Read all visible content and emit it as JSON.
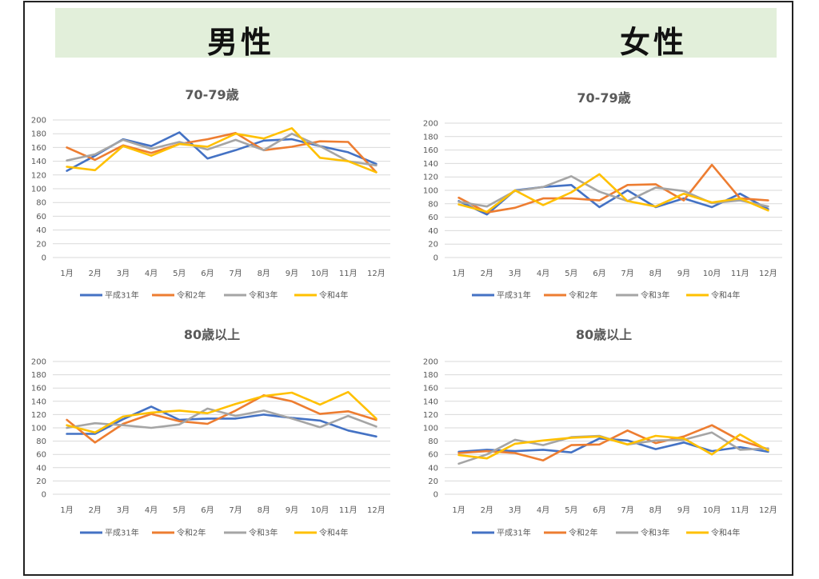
{
  "banner": {
    "left": "男性",
    "right": "女性"
  },
  "legend": [
    "平成31年",
    "令和2年",
    "令和3年",
    "令和4年"
  ],
  "colors": [
    "#4472c4",
    "#ed7d31",
    "#a5a5a5",
    "#ffc000"
  ],
  "chart_data": [
    {
      "type": "line",
      "title": "70-79歳",
      "group": "男性",
      "categories": [
        "1月",
        "2月",
        "3月",
        "4月",
        "5月",
        "6月",
        "7月",
        "8月",
        "9月",
        "10月",
        "11月",
        "12月"
      ],
      "yticks": [
        0,
        20,
        40,
        60,
        80,
        100,
        120,
        140,
        160,
        180,
        200
      ],
      "ylim": [
        0,
        200
      ],
      "grid": true,
      "legend_position": "bottom",
      "series": [
        {
          "name": "平成31年",
          "values": [
            126,
            148,
            172,
            162,
            182,
            144,
            156,
            170,
            172,
            162,
            153,
            136
          ]
        },
        {
          "name": "令和2年",
          "values": [
            160,
            142,
            163,
            152,
            165,
            172,
            181,
            156,
            161,
            169,
            168,
            124
          ]
        },
        {
          "name": "令和3年",
          "values": [
            141,
            150,
            171,
            158,
            168,
            157,
            171,
            156,
            180,
            162,
            140,
            134
          ]
        },
        {
          "name": "令和4年",
          "values": [
            132,
            127,
            162,
            148,
            165,
            161,
            180,
            173,
            188,
            145,
            140,
            124
          ]
        }
      ]
    },
    {
      "type": "line",
      "title": "70-79歳",
      "group": "女性",
      "categories": [
        "1月",
        "2月",
        "3月",
        "4月",
        "5月",
        "6月",
        "7月",
        "8月",
        "9月",
        "10月",
        "11月",
        "12月"
      ],
      "yticks": [
        0,
        20,
        40,
        60,
        80,
        100,
        120,
        140,
        160,
        180,
        200
      ],
      "ylim": [
        0,
        200
      ],
      "grid": true,
      "legend_position": "bottom",
      "series": [
        {
          "name": "平成31年",
          "values": [
            84,
            64,
            100,
            105,
            108,
            75,
            100,
            75,
            88,
            75,
            95,
            72
          ]
        },
        {
          "name": "令和2年",
          "values": [
            89,
            67,
            74,
            88,
            88,
            85,
            108,
            109,
            85,
            138,
            88,
            85
          ]
        },
        {
          "name": "令和3年",
          "values": [
            83,
            76,
            99,
            105,
            121,
            98,
            84,
            104,
            99,
            81,
            85,
            76
          ]
        },
        {
          "name": "令和4年",
          "values": [
            79,
            68,
            100,
            78,
            97,
            124,
            84,
            76,
            95,
            82,
            88,
            70
          ]
        }
      ]
    },
    {
      "type": "line",
      "title": "80歳以上",
      "group": "男性",
      "categories": [
        "1月",
        "2月",
        "3月",
        "4月",
        "5月",
        "6月",
        "7月",
        "8月",
        "9月",
        "10月",
        "11月",
        "12月"
      ],
      "yticks": [
        0,
        20,
        40,
        60,
        80,
        100,
        120,
        140,
        160,
        180,
        200
      ],
      "ylim": [
        0,
        200
      ],
      "grid": true,
      "legend_position": "bottom",
      "series": [
        {
          "name": "平成31年",
          "values": [
            91,
            91,
            113,
            132,
            112,
            114,
            114,
            120,
            115,
            111,
            96,
            87
          ]
        },
        {
          "name": "令和2年",
          "values": [
            112,
            78,
            106,
            121,
            110,
            106,
            126,
            149,
            140,
            121,
            125,
            112
          ]
        },
        {
          "name": "令和3年",
          "values": [
            100,
            107,
            104,
            100,
            105,
            129,
            118,
            126,
            114,
            101,
            118,
            102
          ]
        },
        {
          "name": "令和4年",
          "values": [
            104,
            93,
            117,
            123,
            126,
            122,
            136,
            148,
            153,
            135,
            154,
            114
          ]
        }
      ]
    },
    {
      "type": "line",
      "title": "80歳以上",
      "group": "女性",
      "categories": [
        "1月",
        "2月",
        "3月",
        "4月",
        "5月",
        "6月",
        "7月",
        "8月",
        "9月",
        "10月",
        "11月",
        "12月"
      ],
      "yticks": [
        0,
        20,
        40,
        60,
        80,
        100,
        120,
        140,
        160,
        180,
        200
      ],
      "ylim": [
        0,
        200
      ],
      "grid": true,
      "legend_position": "bottom",
      "series": [
        {
          "name": "平成31年",
          "values": [
            64,
            67,
            65,
            67,
            63,
            84,
            81,
            68,
            78,
            65,
            71,
            64
          ]
        },
        {
          "name": "令和2年",
          "values": [
            62,
            65,
            62,
            51,
            74,
            75,
            96,
            77,
            87,
            104,
            81,
            68
          ]
        },
        {
          "name": "令和3年",
          "values": [
            46,
            60,
            82,
            74,
            86,
            88,
            75,
            81,
            82,
            93,
            67,
            69
          ]
        },
        {
          "name": "令和4年",
          "values": [
            59,
            54,
            76,
            81,
            85,
            87,
            75,
            88,
            84,
            60,
            90,
            66
          ]
        }
      ]
    }
  ]
}
